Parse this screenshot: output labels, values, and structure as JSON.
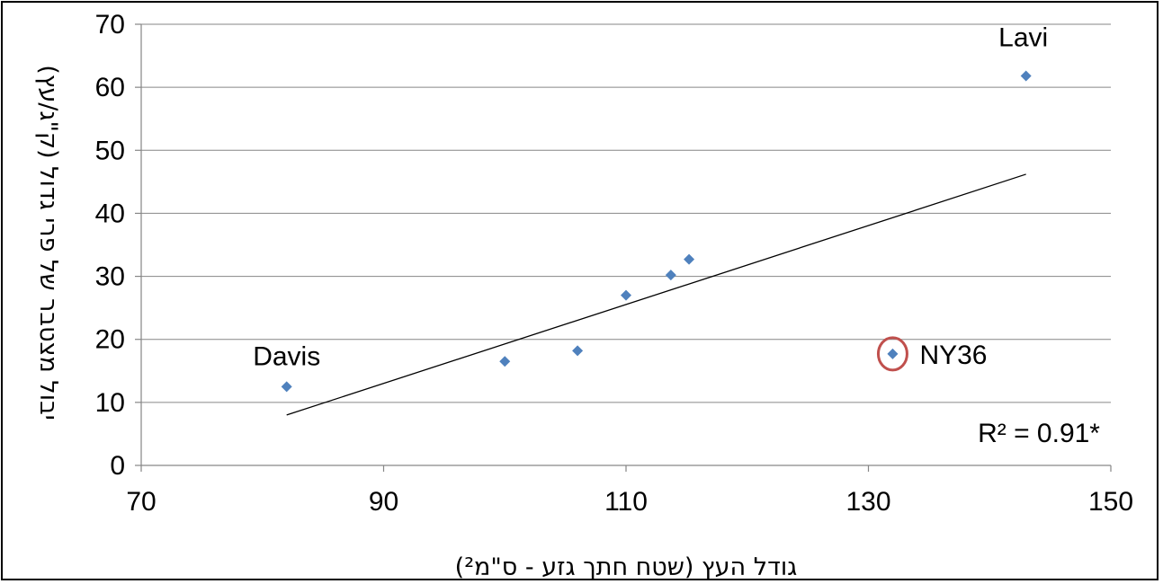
{
  "chart_data": {
    "type": "scatter",
    "title": "",
    "xlabel": "גודל העץ (שטח חתך גזע - ס\"מ²)",
    "ylabel": "יבול מצטבר של פרי גדול (ק\"ג/עץ)",
    "xlim": [
      70,
      150
    ],
    "ylim": [
      0,
      70
    ],
    "xticks": [
      70,
      90,
      110,
      130,
      150
    ],
    "yticks": [
      0,
      10,
      20,
      30,
      40,
      50,
      60,
      70
    ],
    "grid": "horizontal",
    "points": [
      {
        "x": 82,
        "y": 12.5,
        "label": "Davis"
      },
      {
        "x": 100,
        "y": 16.5,
        "label": ""
      },
      {
        "x": 106,
        "y": 18.2,
        "label": ""
      },
      {
        "x": 110,
        "y": 27,
        "label": ""
      },
      {
        "x": 113.7,
        "y": 30.2,
        "label": ""
      },
      {
        "x": 115.2,
        "y": 32.7,
        "label": ""
      },
      {
        "x": 132,
        "y": 17.7,
        "label": "NY36",
        "highlighted": true
      },
      {
        "x": 143,
        "y": 61.8,
        "label": "Lavi"
      }
    ],
    "trendline": {
      "x": [
        82,
        143
      ],
      "y": [
        8,
        46.2
      ]
    },
    "annotation": "R² = 0.91*",
    "colors": {
      "marker": "#4f81bd",
      "highlight_circle": "#c0504d",
      "grid": "#868686",
      "trendline": "#000000"
    }
  }
}
